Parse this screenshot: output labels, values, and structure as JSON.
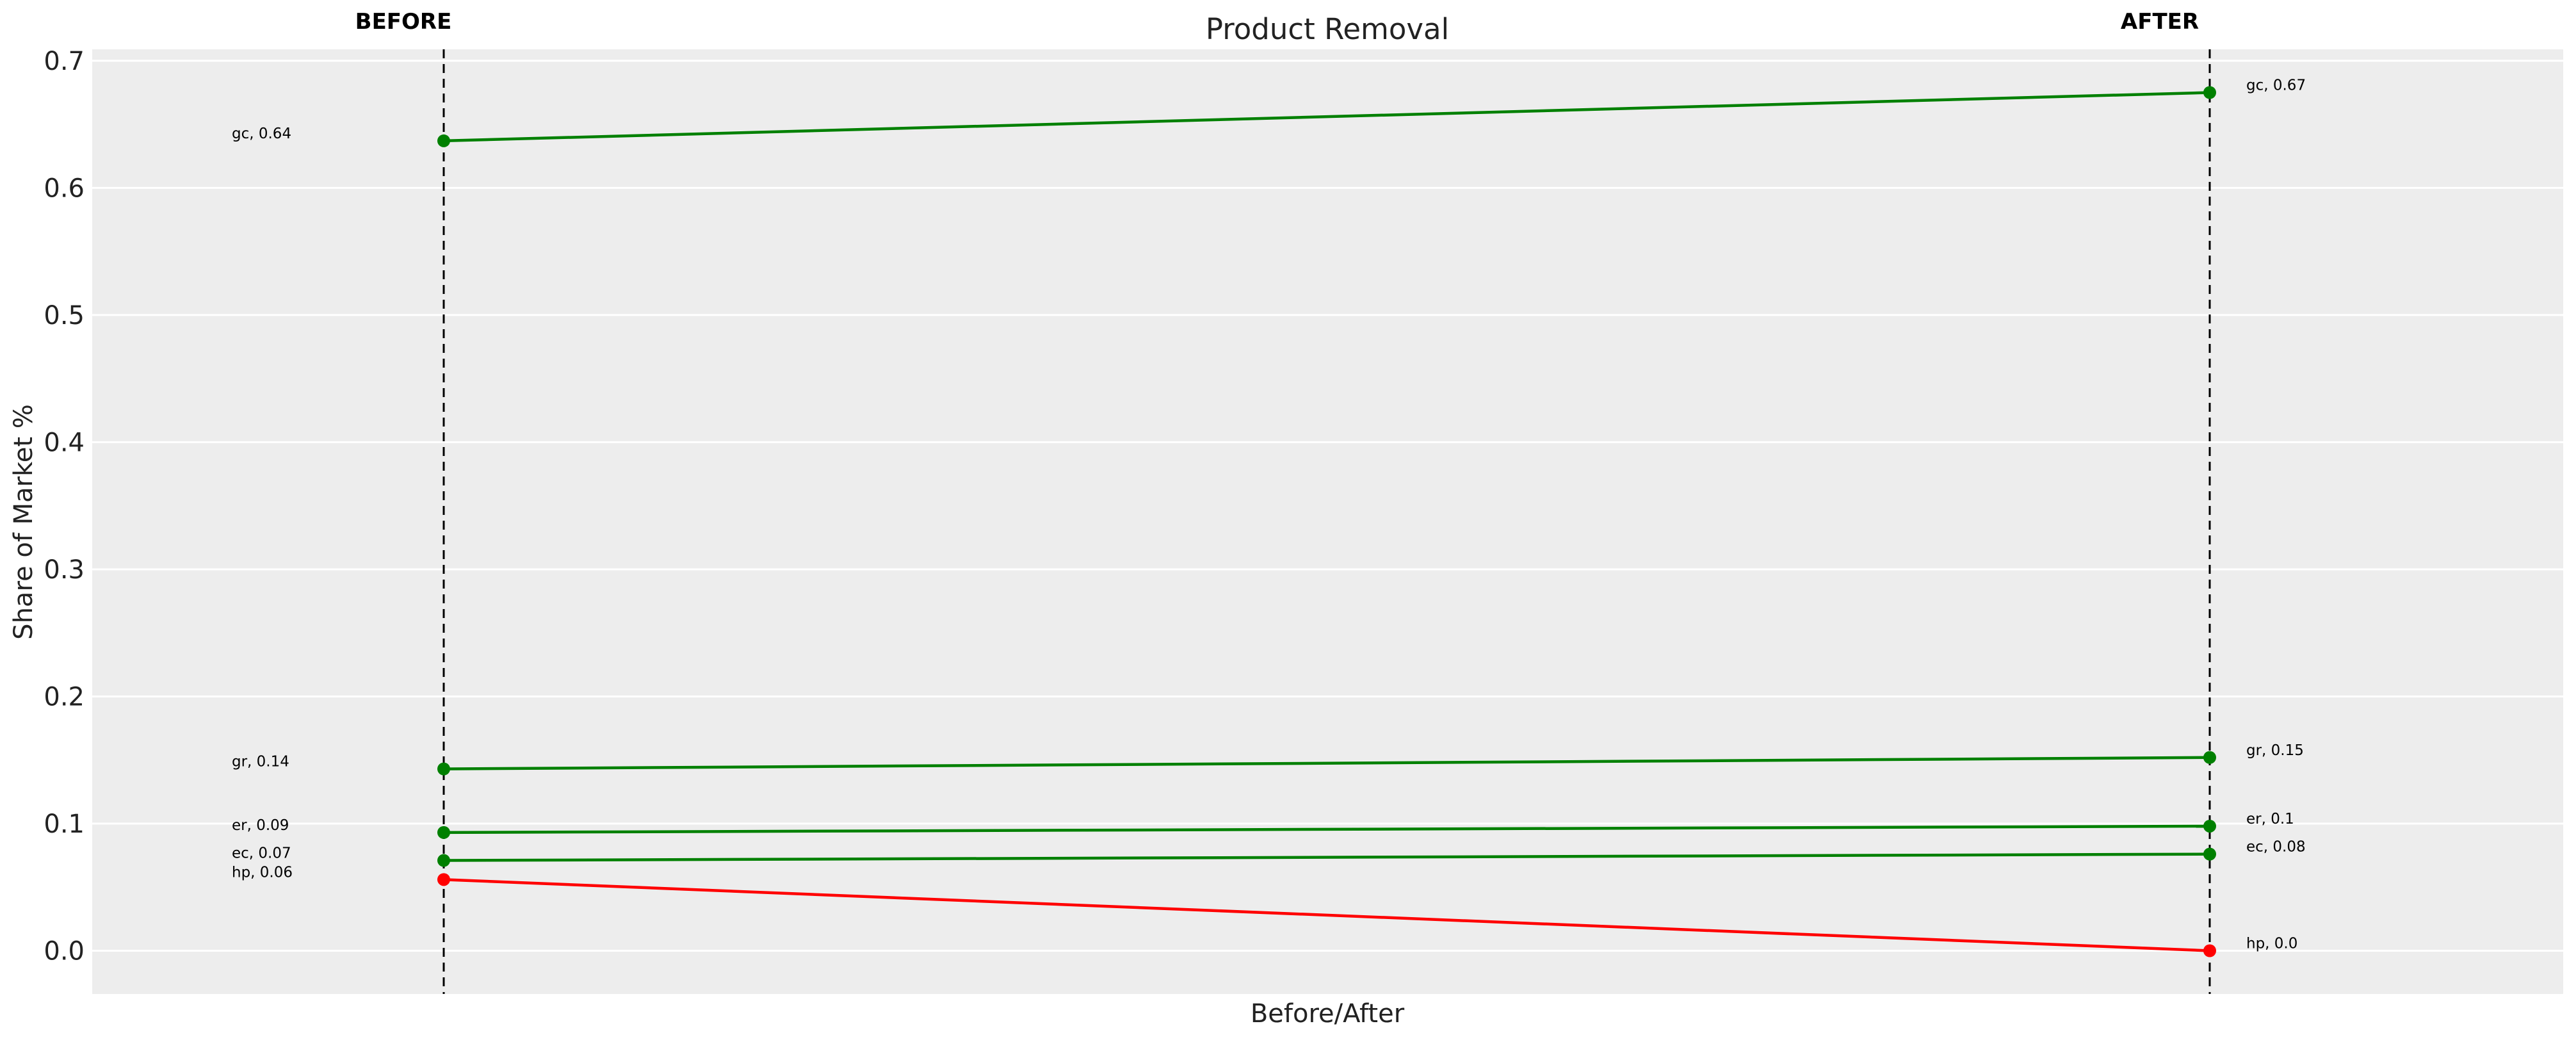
{
  "chart_data": {
    "type": "line",
    "title": "Product Removal",
    "xlabel": "Before/After",
    "ylabel": "Share of Market %",
    "column_labels": [
      "BEFORE",
      "AFTER"
    ],
    "ylim": [
      -0.034,
      0.709
    ],
    "yticks": [
      "0.0",
      "0.1",
      "0.2",
      "0.3",
      "0.4",
      "0.5",
      "0.6",
      "0.7"
    ],
    "grid": true,
    "background": "#ededed",
    "series": [
      {
        "name": "gc",
        "values": [
          0.637,
          0.675
        ],
        "labels": [
          "gc, 0.64",
          "gc, 0.67"
        ],
        "color": "#008000"
      },
      {
        "name": "gr",
        "values": [
          0.143,
          0.152
        ],
        "labels": [
          "gr, 0.14",
          "gr, 0.15"
        ],
        "color": "#008000"
      },
      {
        "name": "er",
        "values": [
          0.093,
          0.098
        ],
        "labels": [
          "er, 0.09",
          "er, 0.1"
        ],
        "color": "#008000"
      },
      {
        "name": "ec",
        "values": [
          0.071,
          0.076
        ],
        "labels": [
          "ec, 0.07",
          "ec, 0.08"
        ],
        "color": "#008000"
      },
      {
        "name": "hp",
        "values": [
          0.056,
          0.0
        ],
        "labels": [
          "hp, 0.06",
          "hp, 0.0"
        ],
        "color": "#ff0000"
      }
    ]
  }
}
